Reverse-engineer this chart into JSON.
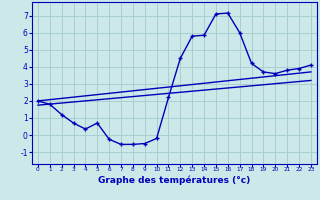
{
  "title": "",
  "xlabel": "Graphe des températures (°c)",
  "background_color": "#cce8e8",
  "grid_color": "#a8d0d0",
  "line_color": "#0000bb",
  "xlim": [
    -0.5,
    23.5
  ],
  "ylim": [
    -1.7,
    7.8
  ],
  "yticks": [
    -1,
    0,
    1,
    2,
    3,
    4,
    5,
    6,
    7
  ],
  "xticks": [
    0,
    1,
    2,
    3,
    4,
    5,
    6,
    7,
    8,
    9,
    10,
    11,
    12,
    13,
    14,
    15,
    16,
    17,
    18,
    19,
    20,
    21,
    22,
    23
  ],
  "main_x": [
    0,
    1,
    2,
    3,
    4,
    5,
    6,
    7,
    8,
    9,
    10,
    11,
    12,
    13,
    14,
    15,
    16,
    17,
    18,
    19,
    20,
    21,
    22,
    23
  ],
  "main_y": [
    2.0,
    1.8,
    1.2,
    0.7,
    0.35,
    0.7,
    -0.25,
    -0.55,
    -0.55,
    -0.5,
    -0.2,
    2.2,
    4.5,
    5.8,
    5.85,
    7.1,
    7.15,
    6.0,
    4.2,
    3.7,
    3.6,
    3.8,
    3.9,
    4.1
  ],
  "line1_x": [
    0,
    23
  ],
  "line1_y": [
    1.75,
    3.2
  ],
  "line2_x": [
    0,
    23
  ],
  "line2_y": [
    2.0,
    3.7
  ]
}
